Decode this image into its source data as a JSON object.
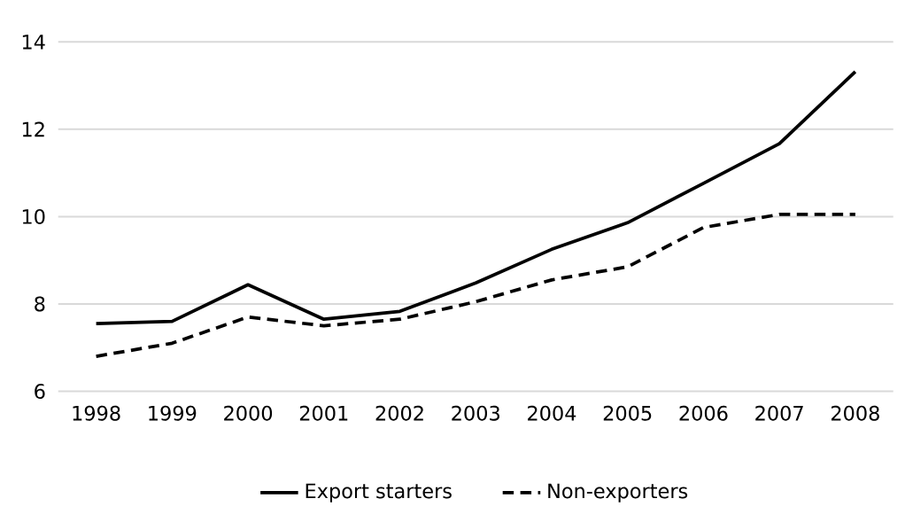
{
  "chart_data": {
    "type": "line",
    "categories": [
      "1998",
      "1999",
      "2000",
      "2001",
      "2002",
      "2003",
      "2004",
      "2005",
      "2006",
      "2007",
      "2008"
    ],
    "series": [
      {
        "name": "Export starters",
        "color": "#000000",
        "line_style": "solid",
        "values": [
          7.55,
          7.6,
          8.44,
          7.65,
          7.83,
          8.48,
          9.25,
          9.86,
          10.76,
          11.67,
          13.32
        ]
      },
      {
        "name": "Non-exporters",
        "color": "#000000",
        "line_style": "dashed",
        "values": [
          6.8,
          7.1,
          7.7,
          7.5,
          7.65,
          8.05,
          8.55,
          8.85,
          9.75,
          10.05,
          10.05
        ]
      }
    ],
    "ylim": [
      6,
      14
    ],
    "yticks": [
      6,
      8,
      10,
      12,
      14
    ],
    "grid": "y",
    "legend": "bottom",
    "marker": "none"
  }
}
